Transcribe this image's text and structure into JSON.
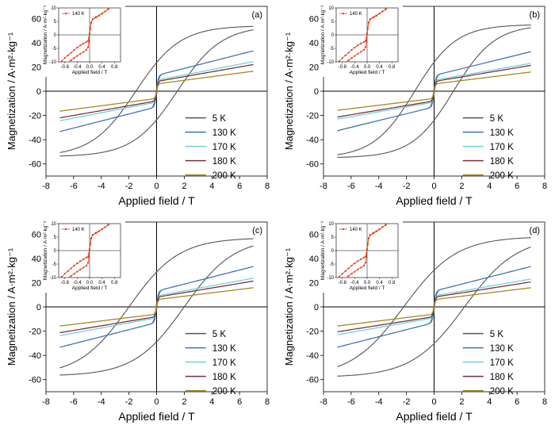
{
  "chart_data": {
    "type": "line",
    "temperatures": [
      "5 K",
      "130 K",
      "170 K",
      "180 K",
      "200 K"
    ],
    "colors": {
      "5 K": "#555555",
      "130 K": "#3a73b5",
      "170 K": "#6fd1da",
      "180 K": "#7a2e3a",
      "200 K": "#a08a1e",
      "inset": "#e0401a"
    },
    "xlabel": "Applied field / T",
    "ylabel": "Magnetization / A·m²·kg⁻¹",
    "xlim": [
      -8,
      8
    ],
    "ylim": [
      -70,
      70
    ],
    "xticks": [
      -8,
      -6,
      -4,
      -2,
      0,
      2,
      4,
      6,
      8
    ],
    "yticks": [
      -60,
      -40,
      -20,
      0,
      20,
      40,
      60
    ],
    "legend_position": "lower-right",
    "inset": {
      "series_name": "140 K",
      "xlabel": "Applied field / T",
      "ylabel": "Magnetization / A·m²·kg⁻¹",
      "xlim": [
        -1,
        1
      ],
      "ylim": [
        -10,
        10
      ],
      "xticks": [
        -0.8,
        -0.4,
        0.0,
        0.4,
        0.8
      ],
      "yticks": [
        -10,
        -5,
        0,
        5,
        10
      ],
      "xticklabels": [
        "-0.8",
        "-0.4",
        "0.0",
        "0.4",
        "0.8"
      ],
      "points_upper_branch": [
        [
          -1.0,
          -10.8
        ],
        [
          -0.9,
          -9.7
        ],
        [
          -0.8,
          -8.6
        ],
        [
          -0.7,
          -7.6
        ],
        [
          -0.6,
          -6.6
        ],
        [
          -0.5,
          -5.6
        ],
        [
          -0.4,
          -4.7
        ],
        [
          -0.3,
          -3.9
        ],
        [
          -0.2,
          -3.2
        ],
        [
          -0.1,
          -2.6
        ],
        [
          -0.05,
          -2.2
        ],
        [
          -0.02,
          -1.0
        ],
        [
          0.0,
          0.5
        ],
        [
          0.02,
          2.5
        ],
        [
          0.05,
          4.5
        ],
        [
          0.1,
          5.8
        ],
        [
          0.2,
          6.4
        ],
        [
          0.3,
          7.1
        ],
        [
          0.4,
          7.9
        ],
        [
          0.5,
          8.7
        ],
        [
          0.6,
          9.5
        ],
        [
          0.7,
          10.3
        ]
      ],
      "points_lower_branch": [
        [
          0.7,
          10.3
        ],
        [
          0.6,
          9.5
        ],
        [
          0.5,
          8.7
        ],
        [
          0.4,
          7.9
        ],
        [
          0.3,
          7.2
        ],
        [
          0.2,
          6.6
        ],
        [
          0.1,
          5.8
        ],
        [
          0.05,
          4.6
        ],
        [
          0.02,
          2.2
        ],
        [
          0.0,
          0.5
        ],
        [
          -0.02,
          -2.5
        ],
        [
          -0.05,
          -4.5
        ],
        [
          -0.1,
          -5.6
        ],
        [
          -0.2,
          -6.3
        ],
        [
          -0.3,
          -7.0
        ],
        [
          -0.4,
          -7.8
        ],
        [
          -0.5,
          -8.6
        ],
        [
          -0.6,
          -9.4
        ],
        [
          -0.7,
          -10.2
        ]
      ]
    },
    "panels": [
      {
        "label": "(a)",
        "series": [
          {
            "name": "5 K",
            "Ms": 54,
            "Hc": 1.5,
            "Mr": 23,
            "Hk": 3.2,
            "slope": 0
          },
          {
            "name": "130 K",
            "Ms": 13,
            "Hc": 0.03,
            "Mr": 7,
            "Hk": 0.15,
            "slope": 2.9
          },
          {
            "name": "170 K",
            "Ms": 9,
            "Hc": 0.02,
            "Mr": 5,
            "Hk": 0.1,
            "slope": 2.2
          },
          {
            "name": "180 K",
            "Ms": 8,
            "Hc": 0.02,
            "Mr": 4,
            "Hk": 0.1,
            "slope": 2.0
          },
          {
            "name": "200 K",
            "Ms": 6,
            "Hc": 0.01,
            "Mr": 3,
            "Hk": 0.1,
            "slope": 1.5
          }
        ]
      },
      {
        "label": "(b)",
        "series": [
          {
            "name": "5 K",
            "Ms": 55,
            "Hc": 1.4,
            "Mr": 22,
            "Hk": 3.0,
            "slope": 0
          },
          {
            "name": "130 K",
            "Ms": 13,
            "Hc": 0.03,
            "Mr": 7,
            "Hk": 0.15,
            "slope": 2.8
          },
          {
            "name": "170 K",
            "Ms": 9,
            "Hc": 0.02,
            "Mr": 5,
            "Hk": 0.1,
            "slope": 2.0
          },
          {
            "name": "180 K",
            "Ms": 8,
            "Hc": 0.02,
            "Mr": 4,
            "Hk": 0.1,
            "slope": 1.9
          },
          {
            "name": "200 K",
            "Ms": 6,
            "Hc": 0.01,
            "Mr": 3,
            "Hk": 0.1,
            "slope": 1.4
          }
        ]
      },
      {
        "label": "(c)",
        "series": [
          {
            "name": "5 K",
            "Ms": 57,
            "Hc": 2.0,
            "Mr": 25,
            "Hk": 3.6,
            "slope": 0
          },
          {
            "name": "130 K",
            "Ms": 13,
            "Hc": 0.03,
            "Mr": 7,
            "Hk": 0.15,
            "slope": 2.9
          },
          {
            "name": "170 K",
            "Ms": 9,
            "Hc": 0.02,
            "Mr": 5,
            "Hk": 0.1,
            "slope": 2.1
          },
          {
            "name": "180 K",
            "Ms": 8,
            "Hc": 0.02,
            "Mr": 4,
            "Hk": 0.1,
            "slope": 1.9
          },
          {
            "name": "200 K",
            "Ms": 6,
            "Hc": 0.01,
            "Mr": 3,
            "Hk": 0.1,
            "slope": 1.4
          }
        ]
      },
      {
        "label": "(d)",
        "series": [
          {
            "name": "5 K",
            "Ms": 58,
            "Hc": 2.2,
            "Mr": 24,
            "Hk": 3.8,
            "slope": 0
          },
          {
            "name": "130 K",
            "Ms": 13,
            "Hc": 0.03,
            "Mr": 7,
            "Hk": 0.15,
            "slope": 2.9
          },
          {
            "name": "170 K",
            "Ms": 9,
            "Hc": 0.02,
            "Mr": 5,
            "Hk": 0.1,
            "slope": 2.0
          },
          {
            "name": "180 K",
            "Ms": 8,
            "Hc": 0.02,
            "Mr": 4,
            "Hk": 0.1,
            "slope": 1.8
          },
          {
            "name": "200 K",
            "Ms": 6,
            "Hc": 0.01,
            "Mr": 3,
            "Hk": 0.1,
            "slope": 1.4
          }
        ]
      }
    ]
  }
}
